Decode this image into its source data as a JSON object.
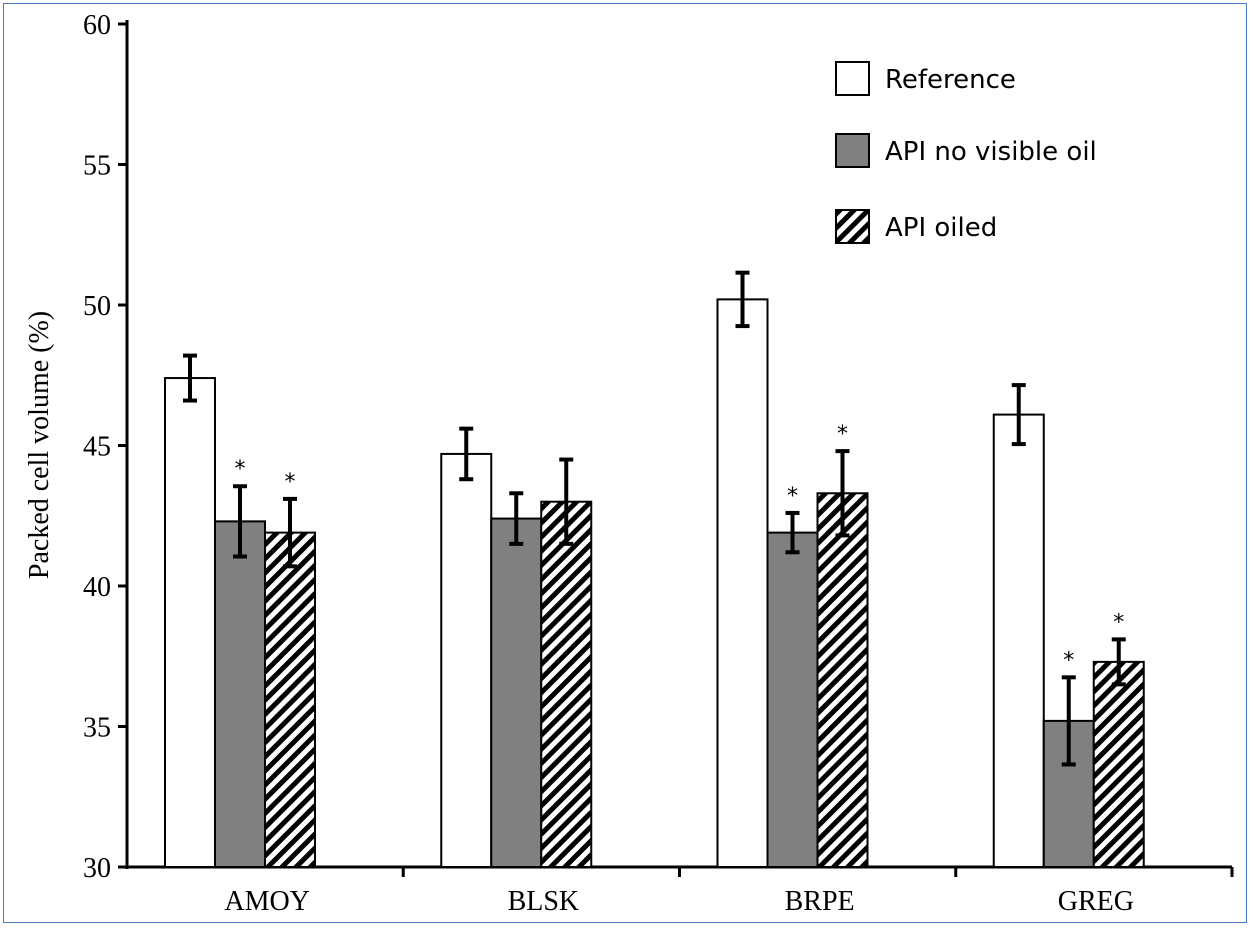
{
  "chart_data": {
    "type": "bar",
    "title": "",
    "ylabel": "Packed cell volume (%)",
    "xlabel": "",
    "ylim": [
      30,
      60
    ],
    "yticks": [
      30,
      35,
      40,
      45,
      50,
      55,
      60
    ],
    "categories": [
      "AMOY",
      "BLSK",
      "BRPE",
      "GREG"
    ],
    "legend_position": "top-right",
    "grid": false,
    "series": [
      {
        "name": "Reference",
        "style": "white",
        "values": [
          47.4,
          44.7,
          50.2,
          46.1
        ],
        "errors": [
          0.8,
          0.9,
          0.95,
          1.05
        ],
        "significant": [
          false,
          false,
          false,
          false
        ]
      },
      {
        "name": "API no visible oil",
        "style": "gray",
        "values": [
          42.3,
          42.4,
          41.9,
          35.2
        ],
        "errors": [
          1.25,
          0.9,
          0.7,
          1.55
        ],
        "significant": [
          true,
          false,
          true,
          true
        ]
      },
      {
        "name": "API oiled",
        "style": "hatched",
        "values": [
          41.9,
          43.0,
          43.3,
          37.3
        ],
        "errors": [
          1.2,
          1.5,
          1.5,
          0.8
        ],
        "significant": [
          true,
          false,
          true,
          true
        ]
      }
    ],
    "significance_marker": "*",
    "colors": {
      "gray": "#808080",
      "white": "#ffffff",
      "stroke": "#000000",
      "frame": "#4a7cc4"
    }
  }
}
